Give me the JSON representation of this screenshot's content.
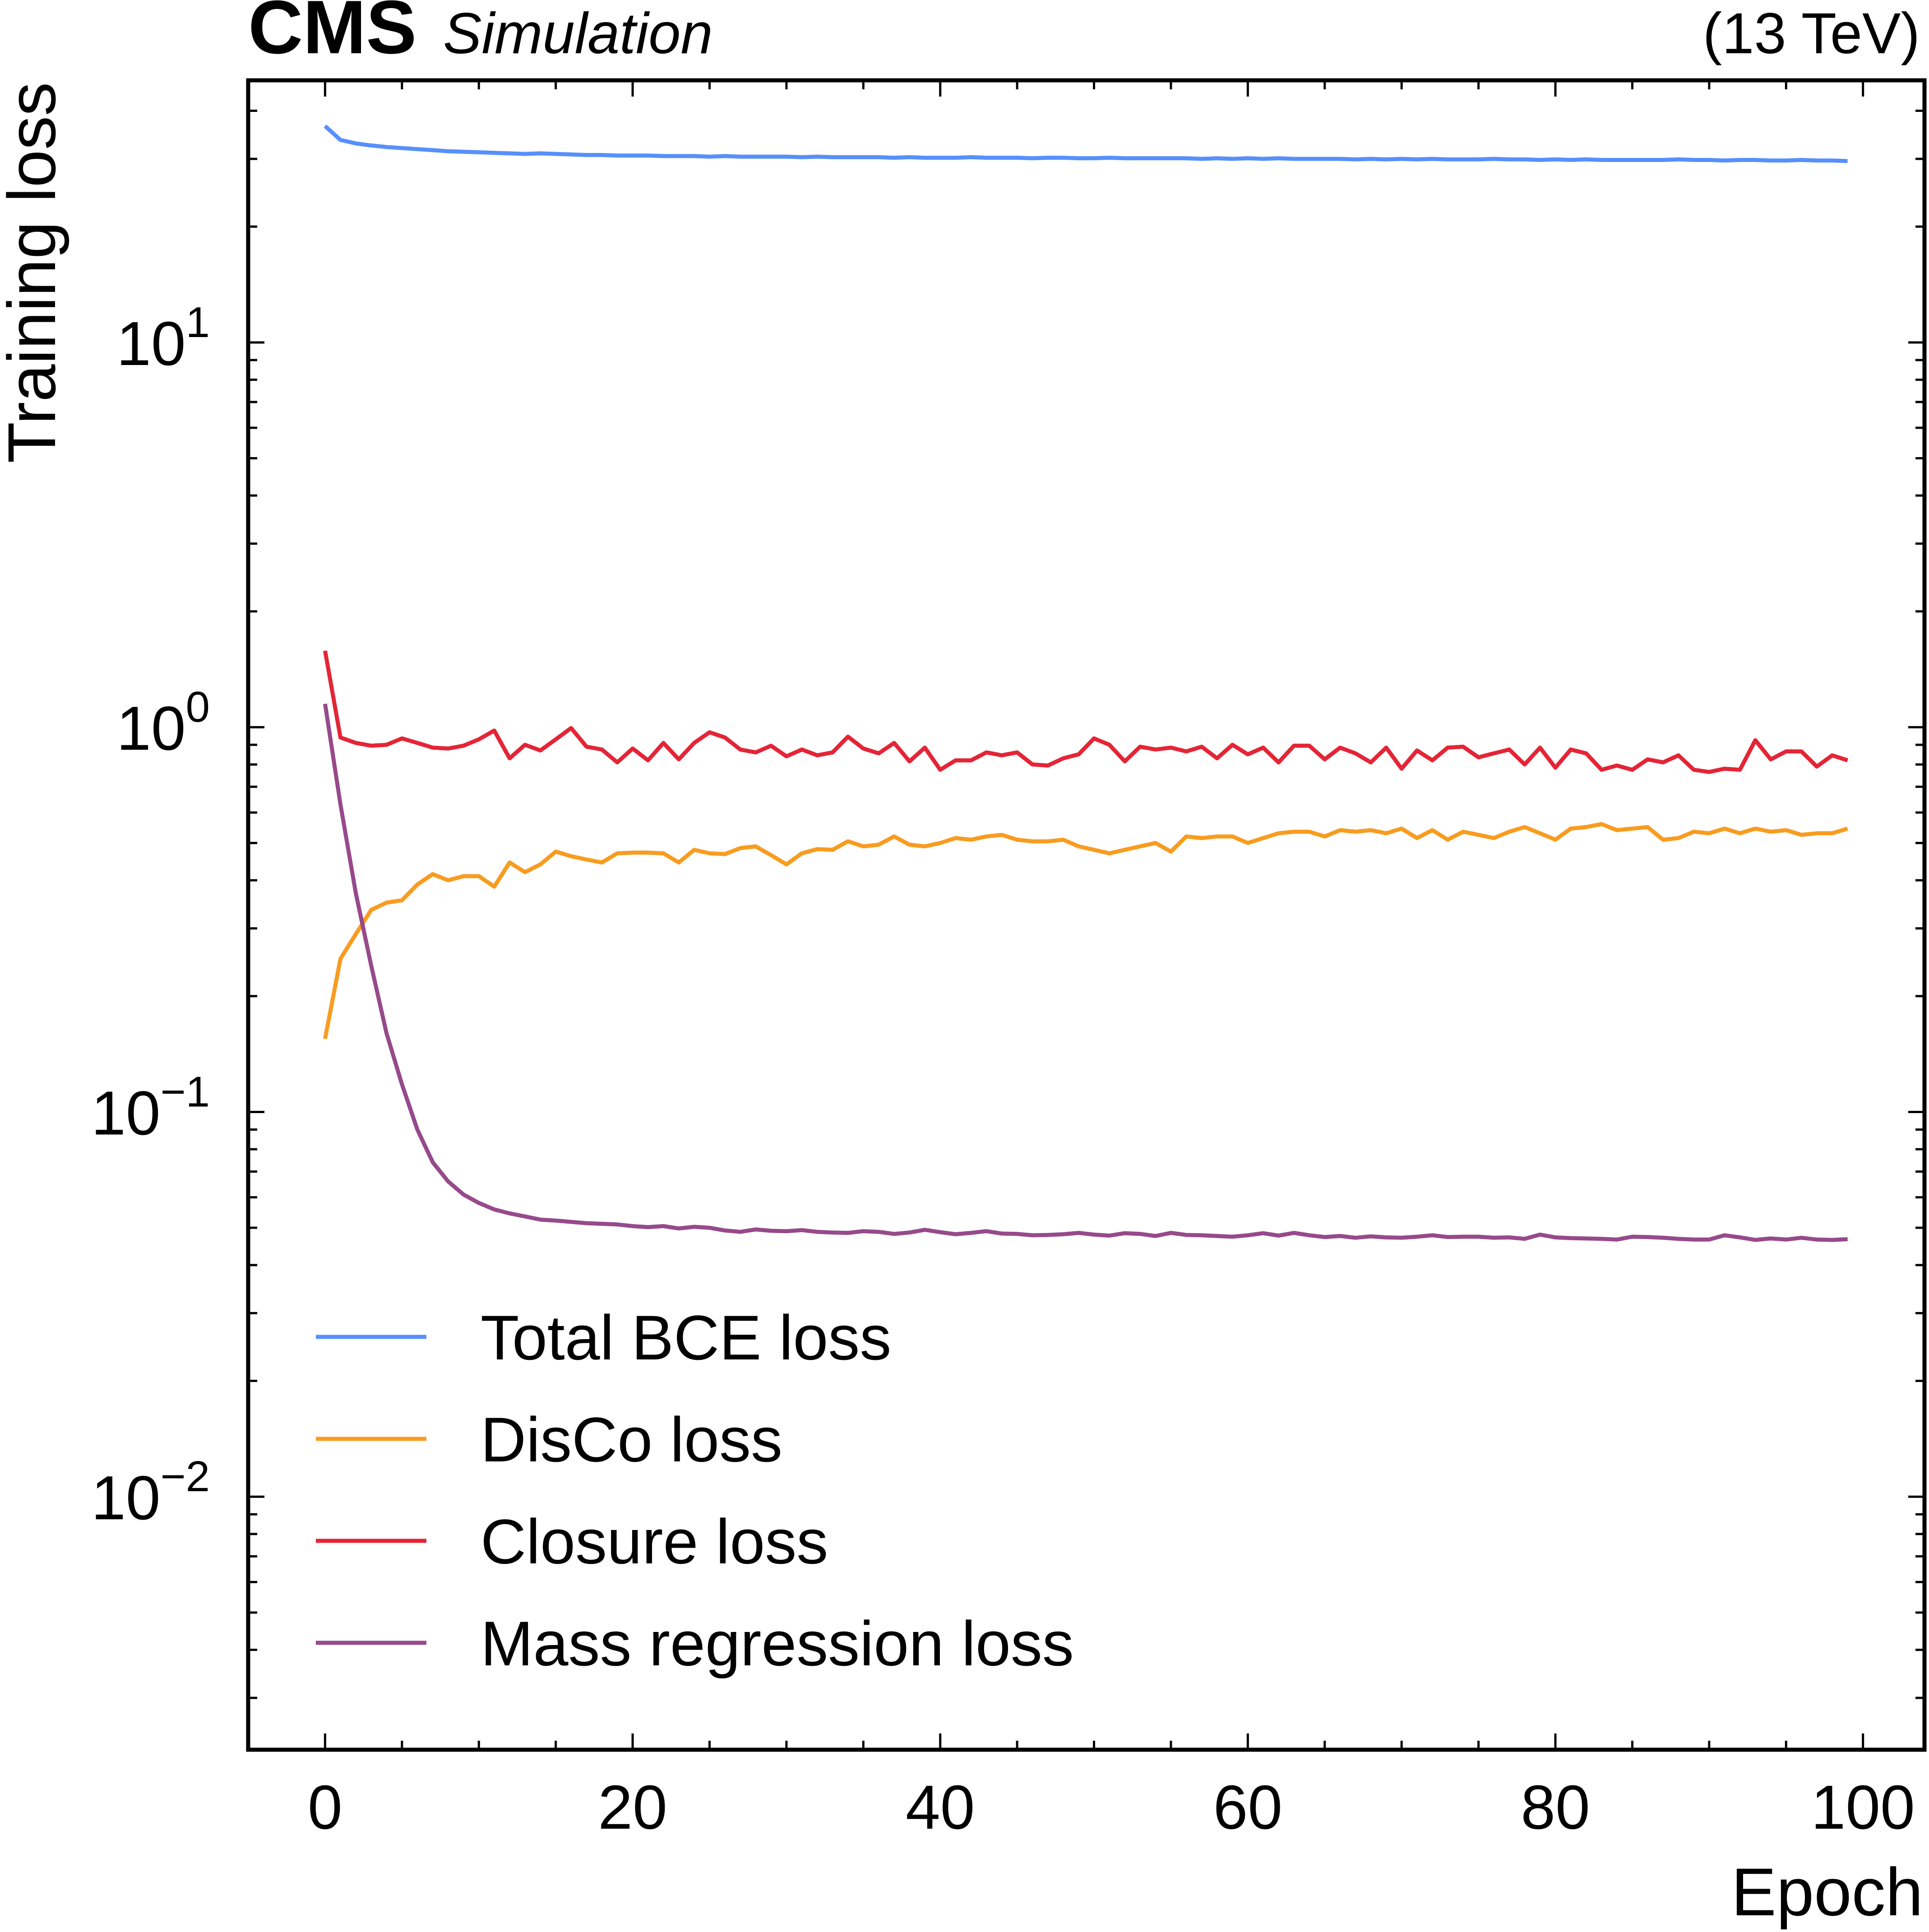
{
  "header": {
    "experiment": "CMS",
    "status": "Simulation",
    "energy": "(13 TeV)"
  },
  "chart_data": {
    "type": "line",
    "title": "",
    "xlabel": "Epoch",
    "ylabel": "Training loss",
    "xscale": "linear",
    "yscale": "log",
    "xlim": [
      -5,
      104
    ],
    "ylim": [
      0.0022,
      48
    ],
    "x_ticks": [
      0,
      20,
      40,
      60,
      80,
      100
    ],
    "y_ticks": [
      {
        "value": 0.01,
        "base": "10",
        "exp": "−2"
      },
      {
        "value": 0.1,
        "base": "10",
        "exp": "−1"
      },
      {
        "value": 1,
        "base": "10",
        "exp": "0"
      },
      {
        "value": 10,
        "base": "10",
        "exp": "1"
      }
    ],
    "grid": false,
    "legend_position": "bottom-left",
    "x": [
      0,
      1,
      2,
      3,
      4,
      5,
      6,
      7,
      8,
      9,
      10,
      11,
      12,
      13,
      14,
      15,
      16,
      17,
      18,
      19,
      20,
      21,
      22,
      23,
      24,
      25,
      26,
      27,
      28,
      29,
      30,
      31,
      32,
      33,
      34,
      35,
      36,
      37,
      38,
      39,
      40,
      41,
      42,
      43,
      44,
      45,
      46,
      47,
      48,
      49,
      50,
      51,
      52,
      53,
      54,
      55,
      56,
      57,
      58,
      59,
      60,
      61,
      62,
      63,
      64,
      65,
      66,
      67,
      68,
      69,
      70,
      71,
      72,
      73,
      74,
      75,
      76,
      77,
      78,
      79,
      80,
      81,
      82,
      83,
      84,
      85,
      86,
      87,
      88,
      89,
      90,
      91,
      92,
      93,
      94,
      95,
      96,
      97,
      98,
      99
    ],
    "series": [
      {
        "name": "Total BCE loss",
        "color": "#5790fc",
        "values": [
          36.5,
          33.6,
          32.9,
          32.5,
          32.2,
          32.0,
          31.8,
          31.6,
          31.4,
          31.3,
          31.2,
          31.1,
          31.0,
          30.9,
          31.0,
          30.9,
          30.8,
          30.7,
          30.7,
          30.6,
          30.6,
          30.6,
          30.5,
          30.5,
          30.5,
          30.4,
          30.5,
          30.4,
          30.4,
          30.4,
          30.4,
          30.3,
          30.4,
          30.3,
          30.3,
          30.3,
          30.3,
          30.2,
          30.3,
          30.2,
          30.2,
          30.2,
          30.3,
          30.2,
          30.2,
          30.2,
          30.1,
          30.2,
          30.2,
          30.1,
          30.1,
          30.2,
          30.1,
          30.1,
          30.1,
          30.1,
          30.1,
          30.0,
          30.1,
          30.0,
          30.1,
          30.0,
          30.1,
          30.0,
          30.0,
          30.0,
          30.0,
          29.9,
          30.0,
          29.9,
          30.0,
          29.9,
          30.0,
          29.9,
          29.9,
          29.9,
          30.0,
          29.9,
          29.9,
          29.8,
          29.9,
          29.8,
          29.9,
          29.8,
          29.8,
          29.8,
          29.8,
          29.8,
          29.9,
          29.8,
          29.8,
          29.7,
          29.8,
          29.8,
          29.7,
          29.7,
          29.8,
          29.7,
          29.7,
          29.6
        ]
      },
      {
        "name": "DisCo loss",
        "color": "#f89c20",
        "values": [
          0.155,
          0.25,
          0.29,
          0.335,
          0.35,
          0.355,
          0.39,
          0.415,
          0.4,
          0.41,
          0.41,
          0.385,
          0.445,
          0.42,
          0.44,
          0.475,
          0.462,
          0.453,
          0.445,
          0.47,
          0.472,
          0.472,
          0.47,
          0.445,
          0.48,
          0.47,
          0.468,
          0.485,
          0.49,
          0.465,
          0.44,
          0.47,
          0.482,
          0.48,
          0.505,
          0.49,
          0.495,
          0.52,
          0.495,
          0.49,
          0.5,
          0.515,
          0.51,
          0.52,
          0.525,
          0.51,
          0.505,
          0.505,
          0.51,
          0.49,
          0.48,
          0.47,
          0.48,
          0.49,
          0.5,
          0.475,
          0.52,
          0.515,
          0.52,
          0.52,
          0.5,
          0.515,
          0.53,
          0.535,
          0.535,
          0.52,
          0.54,
          0.535,
          0.54,
          0.53,
          0.545,
          0.515,
          0.54,
          0.51,
          0.535,
          0.525,
          0.515,
          0.535,
          0.55,
          0.53,
          0.51,
          0.545,
          0.55,
          0.56,
          0.54,
          0.545,
          0.55,
          0.51,
          0.515,
          0.535,
          0.53,
          0.545,
          0.53,
          0.545,
          0.535,
          0.54,
          0.525,
          0.53,
          0.53,
          0.545
        ]
      },
      {
        "name": "Closure loss",
        "color": "#e42536",
        "values": [
          1.58,
          0.94,
          0.91,
          0.895,
          0.9,
          0.935,
          0.91,
          0.885,
          0.88,
          0.895,
          0.93,
          0.98,
          0.83,
          0.9,
          0.87,
          0.93,
          0.995,
          0.89,
          0.875,
          0.81,
          0.88,
          0.82,
          0.91,
          0.825,
          0.91,
          0.97,
          0.94,
          0.875,
          0.86,
          0.895,
          0.84,
          0.875,
          0.845,
          0.86,
          0.945,
          0.88,
          0.855,
          0.91,
          0.815,
          0.885,
          0.775,
          0.82,
          0.82,
          0.86,
          0.845,
          0.86,
          0.8,
          0.795,
          0.83,
          0.85,
          0.935,
          0.9,
          0.815,
          0.89,
          0.875,
          0.885,
          0.865,
          0.89,
          0.83,
          0.9,
          0.85,
          0.885,
          0.81,
          0.895,
          0.895,
          0.825,
          0.885,
          0.855,
          0.81,
          0.885,
          0.78,
          0.87,
          0.82,
          0.885,
          0.89,
          0.835,
          0.855,
          0.875,
          0.8,
          0.885,
          0.785,
          0.875,
          0.855,
          0.775,
          0.795,
          0.775,
          0.825,
          0.81,
          0.845,
          0.775,
          0.765,
          0.78,
          0.775,
          0.925,
          0.825,
          0.865,
          0.865,
          0.79,
          0.845,
          0.82
        ]
      },
      {
        "name": "Mass regression loss",
        "color": "#964a8b",
        "values": [
          1.15,
          0.63,
          0.37,
          0.24,
          0.16,
          0.118,
          0.09,
          0.074,
          0.066,
          0.061,
          0.058,
          0.0558,
          0.0545,
          0.0535,
          0.0525,
          0.0522,
          0.0518,
          0.0514,
          0.0512,
          0.051,
          0.0505,
          0.0502,
          0.0505,
          0.0498,
          0.0503,
          0.05,
          0.0492,
          0.0488,
          0.0495,
          0.0491,
          0.049,
          0.0493,
          0.0488,
          0.0486,
          0.0485,
          0.049,
          0.0488,
          0.0482,
          0.0486,
          0.0494,
          0.0487,
          0.0481,
          0.0485,
          0.049,
          0.0483,
          0.0482,
          0.0478,
          0.0479,
          0.0481,
          0.0485,
          0.048,
          0.0477,
          0.0484,
          0.0482,
          0.0476,
          0.0485,
          0.0479,
          0.0478,
          0.0476,
          0.0474,
          0.0478,
          0.0484,
          0.0477,
          0.0485,
          0.0478,
          0.0473,
          0.0476,
          0.0471,
          0.0475,
          0.0472,
          0.0471,
          0.0474,
          0.0478,
          0.0473,
          0.0474,
          0.0474,
          0.0471,
          0.0472,
          0.0468,
          0.048,
          0.0472,
          0.047,
          0.0469,
          0.0468,
          0.0466,
          0.0474,
          0.0473,
          0.0471,
          0.0468,
          0.0466,
          0.0466,
          0.0478,
          0.0472,
          0.0465,
          0.0469,
          0.0466,
          0.0471,
          0.0466,
          0.0465,
          0.0467
        ]
      }
    ]
  }
}
